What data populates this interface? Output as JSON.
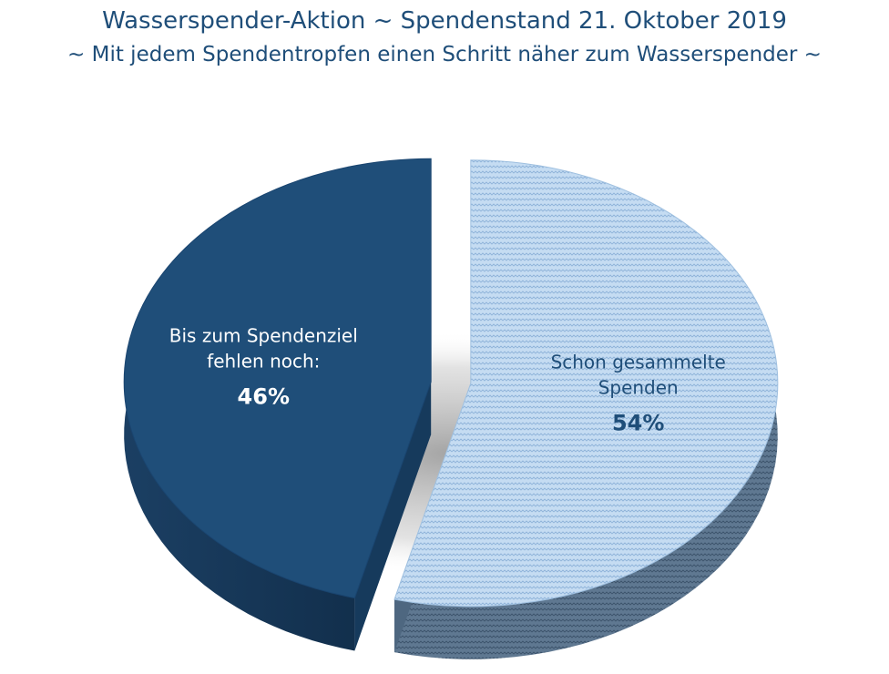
{
  "chart_data": {
    "type": "pie",
    "title": "Wasserspender-Aktion ~ Spendenstand 21. Oktober 2019",
    "subtitle": "~ Mit jedem Spendentropfen einen Schritt näher zum Wasserspender ~",
    "slices": [
      {
        "label_line1": "Bis zum Spendenziel",
        "label_line2": "fehlen noch:",
        "value": 46,
        "percent_label": "46%",
        "color": "#1f4e79"
      },
      {
        "label_line1": "Schon gesammelte",
        "label_line2": "Spenden",
        "value": 54,
        "percent_label": "54%",
        "color": "#bdd7ee"
      }
    ],
    "style": "3d-exploded-pie"
  }
}
